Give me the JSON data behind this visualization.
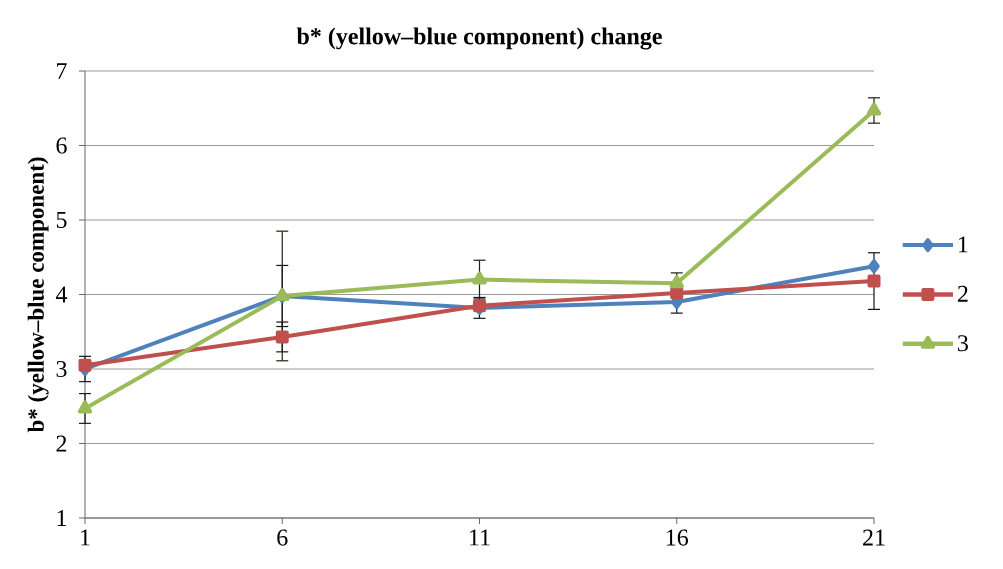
{
  "chart_data": {
    "type": "line",
    "title": "b* (yellow–blue component) change",
    "ylabel": "b* (yellow–blue component)",
    "categories": [
      "1",
      "6",
      "11",
      "16",
      "21"
    ],
    "series": [
      {
        "name": "1",
        "color": "#4f81bd",
        "marker": "diamond",
        "values": [
          3.0,
          3.98,
          3.82,
          3.9,
          4.38
        ],
        "errors": [
          0.17,
          0.41,
          0.14,
          0.15,
          null
        ]
      },
      {
        "name": "2",
        "color": "#c0504d",
        "marker": "square",
        "values": [
          3.05,
          3.43,
          3.85,
          4.02,
          4.18
        ],
        "errors": [
          null,
          0.2,
          null,
          null,
          0.38
        ]
      },
      {
        "name": "3",
        "color": "#9bbb59",
        "marker": "triangle",
        "values": [
          2.47,
          3.98,
          4.2,
          4.15,
          6.47
        ],
        "errors": [
          0.2,
          0.87,
          0.26,
          0.14,
          0.17
        ]
      }
    ],
    "ylim": [
      1,
      7
    ],
    "yticks": [
      1,
      2,
      3,
      4,
      5,
      6,
      7
    ],
    "grid": "y",
    "legend": "right",
    "line_style": "solid"
  }
}
